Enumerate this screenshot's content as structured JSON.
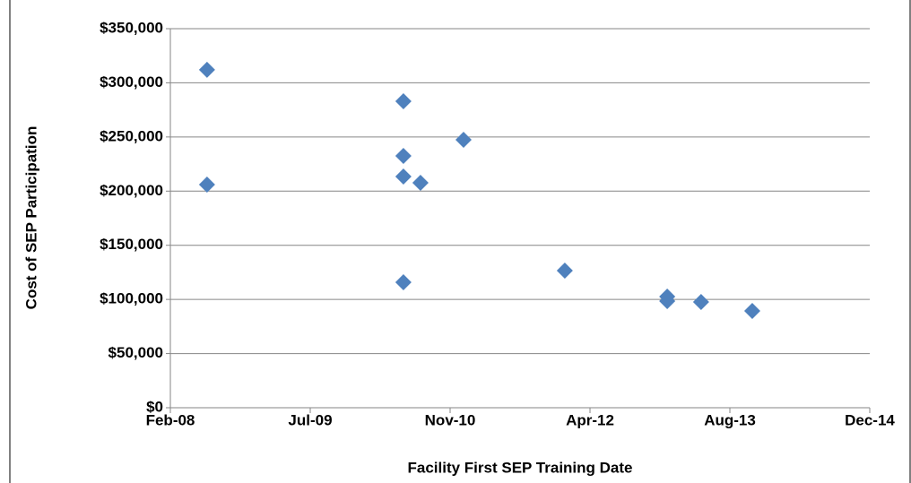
{
  "chart_data": {
    "type": "scatter",
    "x_label": "Facility First SEP Training Date",
    "y_label": "Cost of SEP Participation",
    "xlim": [
      39500,
      42000
    ],
    "xticks": [
      {
        "value": 39500,
        "label": "Feb-08"
      },
      {
        "value": 40000,
        "label": "Jul-09"
      },
      {
        "value": 40500,
        "label": "Nov-10"
      },
      {
        "value": 41000,
        "label": "Apr-12"
      },
      {
        "value": 41500,
        "label": "Aug-13"
      },
      {
        "value": 42000,
        "label": "Dec-14"
      }
    ],
    "ylim": [
      0,
      350000
    ],
    "yticks": [
      {
        "value": 0,
        "label": "$0"
      },
      {
        "value": 50000,
        "label": "$50,000"
      },
      {
        "value": 100000,
        "label": "$100,000"
      },
      {
        "value": 150000,
        "label": "$150,000"
      },
      {
        "value": 200000,
        "label": "$200,000"
      },
      {
        "value": 250000,
        "label": "$250,000"
      },
      {
        "value": 300000,
        "label": "$300,000"
      },
      {
        "value": 350000,
        "label": "$350,000"
      }
    ],
    "grid": true,
    "color": "#4f81bd",
    "x": [
      39631,
      39631,
      40333,
      40333,
      40333,
      40394,
      40548,
      40333,
      40910,
      41276,
      41276,
      41397,
      41580
    ],
    "values": [
      312000,
      206000,
      283000,
      232500,
      213500,
      207700,
      247400,
      115800,
      126600,
      102600,
      98500,
      97600,
      89400
    ]
  }
}
